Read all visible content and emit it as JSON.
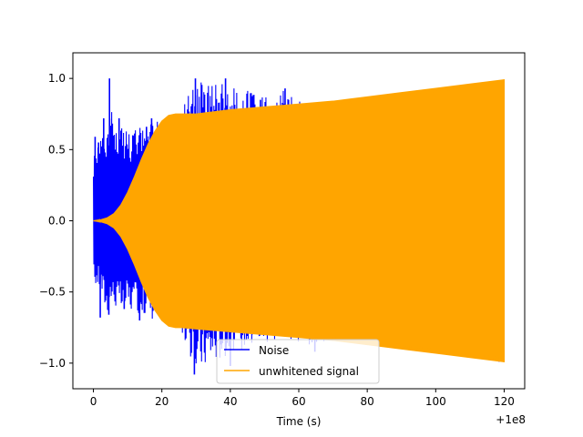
{
  "chart_data": {
    "type": "line",
    "title": "",
    "xlabel": "Time (s)",
    "ylabel": "",
    "x_offset_label": "+1e8",
    "xlim": [
      -6,
      126
    ],
    "ylim": [
      -1.18,
      1.18
    ],
    "x_ticks": [
      0,
      20,
      40,
      60,
      80,
      100,
      120
    ],
    "x_tick_labels": [
      "0",
      "20",
      "40",
      "60",
      "80",
      "100",
      "120"
    ],
    "y_ticks": [
      1.0,
      0.5,
      0.0,
      -0.5,
      -1.0
    ],
    "y_tick_labels": [
      "1.0",
      "0.5",
      "0.0",
      "−0.5",
      "−1.0"
    ],
    "grid": false,
    "legend_position": "lower center",
    "series": [
      {
        "name": "Noise",
        "color": "#0000ff",
        "envelope": {
          "x": [
            0,
            2,
            4,
            5,
            6,
            8,
            10,
            12,
            14,
            16,
            18,
            20,
            22,
            24,
            30,
            40,
            50,
            56,
            64,
            70,
            80,
            90,
            100,
            110,
            118,
            120
          ],
          "upper": [
            0.45,
            0.58,
            0.6,
            1.0,
            0.65,
            0.7,
            0.62,
            0.64,
            0.66,
            0.66,
            0.72,
            0.7,
            0.68,
            0.7,
            0.99,
            0.95,
            0.88,
            0.93,
            0.78,
            0.78,
            0.79,
            0.78,
            0.78,
            0.78,
            0.79,
            0.8
          ],
          "lower": [
            -0.45,
            -0.48,
            -0.68,
            -0.58,
            -0.6,
            -0.65,
            -0.62,
            -0.66,
            -0.64,
            -0.68,
            -0.7,
            -0.66,
            -0.68,
            -0.7,
            -1.07,
            -0.93,
            -0.86,
            -0.82,
            -0.92,
            -0.82,
            -0.86,
            -0.86,
            -0.88,
            -0.92,
            -0.98,
            -0.95
          ]
        },
        "spikes": [
          {
            "x": 0.5,
            "y": 0.59
          },
          {
            "x": 1.5,
            "y": 0.55
          },
          {
            "x": 3.0,
            "y": 0.72
          },
          {
            "x": 4.7,
            "y": 1.0
          },
          {
            "x": 7.5,
            "y": 0.72
          },
          {
            "x": 11.5,
            "y": 0.6
          },
          {
            "x": 15.5,
            "y": 0.66
          },
          {
            "x": 17.0,
            "y": 0.72
          },
          {
            "x": 29.8,
            "y": 1.0
          },
          {
            "x": 38.6,
            "y": 1.0
          },
          {
            "x": 48.8,
            "y": 0.85
          },
          {
            "x": 56.0,
            "y": 0.93
          },
          {
            "x": 2.0,
            "y": -0.68
          },
          {
            "x": 4.5,
            "y": -0.66
          },
          {
            "x": 9.0,
            "y": -0.62
          },
          {
            "x": 13.5,
            "y": -0.7
          },
          {
            "x": 29.5,
            "y": -1.08
          },
          {
            "x": 40.0,
            "y": -1.02
          },
          {
            "x": 64.7,
            "y": -0.92
          },
          {
            "x": 118.5,
            "y": -0.99
          }
        ]
      },
      {
        "name": "unwhitened signal",
        "color": "#ffa500",
        "envelope": {
          "x": [
            0,
            2,
            4,
            6,
            8,
            10,
            12,
            14,
            16,
            18,
            20,
            22,
            24,
            26,
            30,
            40,
            50,
            60,
            70,
            80,
            90,
            100,
            110,
            120
          ],
          "upper": [
            0.0,
            0.006,
            0.02,
            0.05,
            0.11,
            0.2,
            0.31,
            0.43,
            0.54,
            0.63,
            0.7,
            0.74,
            0.75,
            0.75,
            0.75,
            0.78,
            0.8,
            0.82,
            0.84,
            0.87,
            0.9,
            0.93,
            0.96,
            0.99
          ],
          "lower": [
            0.0,
            -0.006,
            -0.02,
            -0.05,
            -0.11,
            -0.2,
            -0.31,
            -0.43,
            -0.54,
            -0.63,
            -0.7,
            -0.74,
            -0.75,
            -0.75,
            -0.76,
            -0.78,
            -0.8,
            -0.82,
            -0.84,
            -0.87,
            -0.9,
            -0.93,
            -0.96,
            -0.99
          ]
        }
      }
    ]
  }
}
